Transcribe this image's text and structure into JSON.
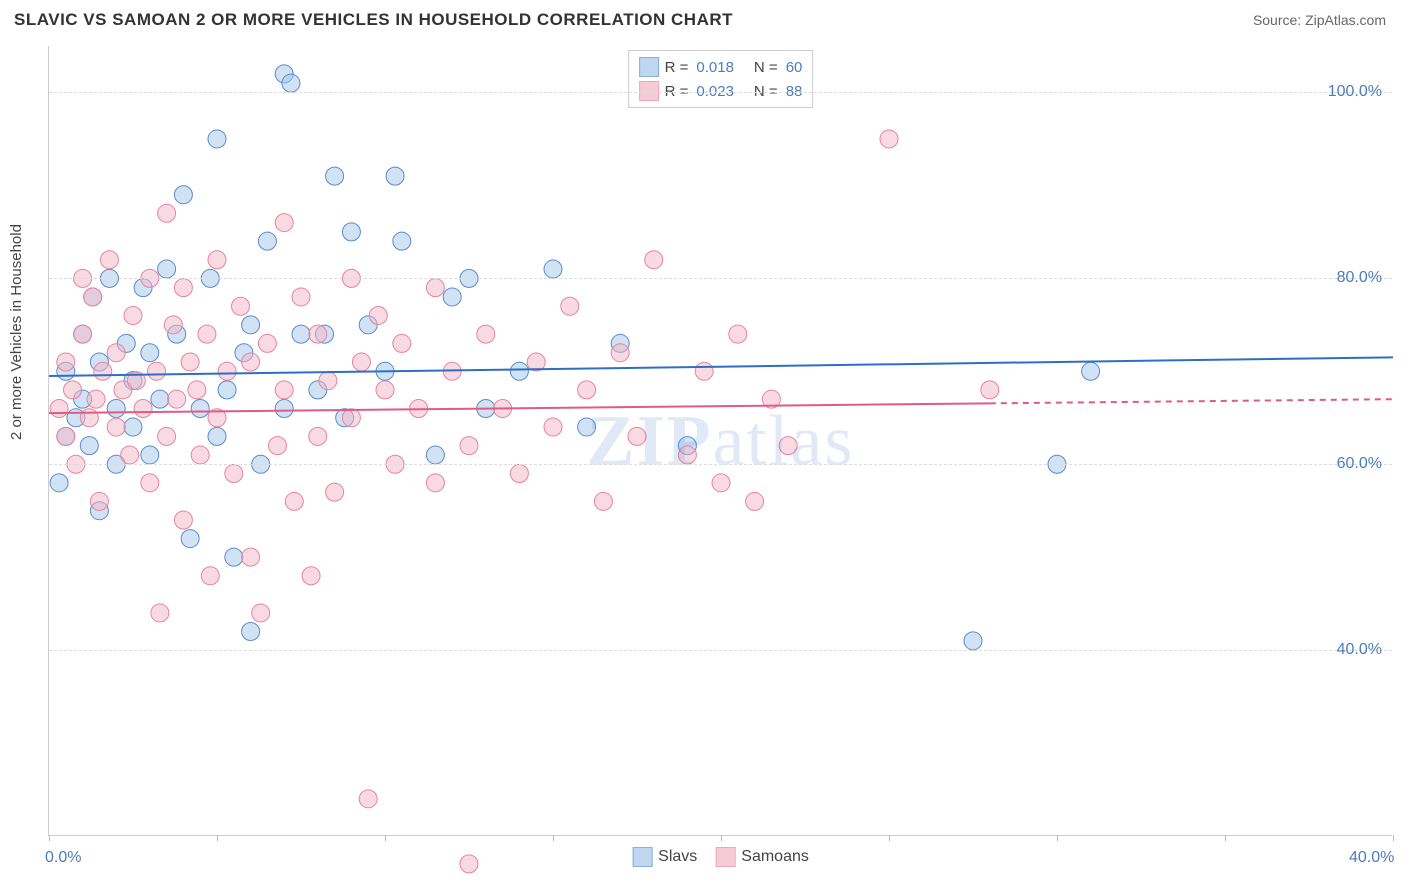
{
  "header": {
    "title": "SLAVIC VS SAMOAN 2 OR MORE VEHICLES IN HOUSEHOLD CORRELATION CHART",
    "source": "Source: ZipAtlas.com"
  },
  "chart": {
    "type": "scatter",
    "y_axis_label": "2 or more Vehicles in Household",
    "xlim": [
      0,
      40
    ],
    "ylim": [
      20,
      105
    ],
    "x_ticks": [
      0,
      5,
      10,
      15,
      20,
      25,
      30,
      35,
      40
    ],
    "x_tick_labels": {
      "0": "0.0%",
      "40": "40.0%"
    },
    "y_gridlines": [
      40,
      60,
      80,
      100
    ],
    "y_tick_labels": {
      "40": "40.0%",
      "60": "60.0%",
      "80": "80.0%",
      "100": "100.0%"
    },
    "background_color": "#ffffff",
    "grid_color": "#dddddd",
    "axis_color": "#cccccc",
    "tick_label_color": "#4a7ebb",
    "title_color": "#333333",
    "watermark": "ZIPatlas",
    "series": [
      {
        "name": "Slavs",
        "fill": "#a3c5eb",
        "stroke": "#5b8bc9",
        "fill_opacity": 0.5,
        "marker_radius": 9,
        "trend": {
          "y1": 69.5,
          "y2": 71.5,
          "color": "#2e6fc4",
          "width": 2
        },
        "R": "0.018",
        "N": "60",
        "points": [
          [
            0.3,
            58
          ],
          [
            0.5,
            63
          ],
          [
            0.5,
            70
          ],
          [
            0.8,
            65
          ],
          [
            1.0,
            67
          ],
          [
            1.0,
            74
          ],
          [
            1.2,
            62
          ],
          [
            1.3,
            78
          ],
          [
            1.5,
            55
          ],
          [
            1.5,
            71
          ],
          [
            1.8,
            80
          ],
          [
            2.0,
            66
          ],
          [
            2.0,
            60
          ],
          [
            2.3,
            73
          ],
          [
            2.5,
            64
          ],
          [
            2.5,
            69
          ],
          [
            2.8,
            79
          ],
          [
            3.0,
            72
          ],
          [
            3.0,
            61
          ],
          [
            3.3,
            67
          ],
          [
            3.5,
            81
          ],
          [
            3.8,
            74
          ],
          [
            4.0,
            89
          ],
          [
            4.2,
            52
          ],
          [
            4.5,
            66
          ],
          [
            4.8,
            80
          ],
          [
            5.0,
            63
          ],
          [
            5.0,
            95
          ],
          [
            5.3,
            68
          ],
          [
            5.5,
            50
          ],
          [
            5.8,
            72
          ],
          [
            6.0,
            42
          ],
          [
            6.0,
            75
          ],
          [
            6.3,
            60
          ],
          [
            6.5,
            84
          ],
          [
            7.0,
            66
          ],
          [
            7.0,
            102
          ],
          [
            7.2,
            101
          ],
          [
            7.5,
            74
          ],
          [
            8.0,
            68
          ],
          [
            8.2,
            74
          ],
          [
            8.5,
            91
          ],
          [
            8.8,
            65
          ],
          [
            9.0,
            85
          ],
          [
            9.5,
            75
          ],
          [
            10.0,
            70
          ],
          [
            10.3,
            91
          ],
          [
            10.5,
            84
          ],
          [
            11.5,
            61
          ],
          [
            12.0,
            78
          ],
          [
            12.5,
            80
          ],
          [
            13.0,
            66
          ],
          [
            14.0,
            70
          ],
          [
            15.0,
            81
          ],
          [
            16.0,
            64
          ],
          [
            17.0,
            73
          ],
          [
            19.0,
            62
          ],
          [
            27.5,
            41
          ],
          [
            30.0,
            60
          ],
          [
            31.0,
            70
          ]
        ]
      },
      {
        "name": "Samoans",
        "fill": "#f4b6c5",
        "stroke": "#e6849f",
        "fill_opacity": 0.5,
        "marker_radius": 9,
        "trend": {
          "y1": 65.5,
          "y2": 67.0,
          "x_solid_end": 28,
          "color": "#e05b84",
          "width": 2
        },
        "R": "0.023",
        "N": "88",
        "points": [
          [
            0.3,
            66
          ],
          [
            0.5,
            63
          ],
          [
            0.5,
            71
          ],
          [
            0.7,
            68
          ],
          [
            0.8,
            60
          ],
          [
            1.0,
            74
          ],
          [
            1.0,
            80
          ],
          [
            1.2,
            65
          ],
          [
            1.3,
            78
          ],
          [
            1.4,
            67
          ],
          [
            1.5,
            56
          ],
          [
            1.6,
            70
          ],
          [
            1.8,
            82
          ],
          [
            2.0,
            64
          ],
          [
            2.0,
            72
          ],
          [
            2.2,
            68
          ],
          [
            2.4,
            61
          ],
          [
            2.5,
            76
          ],
          [
            2.6,
            69
          ],
          [
            2.8,
            66
          ],
          [
            3.0,
            58
          ],
          [
            3.0,
            80
          ],
          [
            3.2,
            70
          ],
          [
            3.3,
            44
          ],
          [
            3.5,
            87
          ],
          [
            3.5,
            63
          ],
          [
            3.7,
            75
          ],
          [
            3.8,
            67
          ],
          [
            4.0,
            54
          ],
          [
            4.0,
            79
          ],
          [
            4.2,
            71
          ],
          [
            4.4,
            68
          ],
          [
            4.5,
            61
          ],
          [
            4.7,
            74
          ],
          [
            4.8,
            48
          ],
          [
            5.0,
            82
          ],
          [
            5.0,
            65
          ],
          [
            5.3,
            70
          ],
          [
            5.5,
            59
          ],
          [
            5.7,
            77
          ],
          [
            6.0,
            50
          ],
          [
            6.0,
            71
          ],
          [
            6.3,
            44
          ],
          [
            6.5,
            73
          ],
          [
            6.8,
            62
          ],
          [
            7.0,
            86
          ],
          [
            7.0,
            68
          ],
          [
            7.3,
            56
          ],
          [
            7.5,
            78
          ],
          [
            7.8,
            48
          ],
          [
            8.0,
            74
          ],
          [
            8.0,
            63
          ],
          [
            8.3,
            69
          ],
          [
            8.5,
            57
          ],
          [
            9.0,
            80
          ],
          [
            9.0,
            65
          ],
          [
            9.3,
            71
          ],
          [
            9.5,
            24
          ],
          [
            9.8,
            76
          ],
          [
            10.0,
            68
          ],
          [
            10.3,
            60
          ],
          [
            10.5,
            73
          ],
          [
            11.0,
            66
          ],
          [
            11.5,
            79
          ],
          [
            11.5,
            58
          ],
          [
            12.0,
            70
          ],
          [
            12.5,
            62
          ],
          [
            12.5,
            17
          ],
          [
            13.0,
            74
          ],
          [
            13.5,
            66
          ],
          [
            14.0,
            59
          ],
          [
            14.5,
            71
          ],
          [
            15.0,
            64
          ],
          [
            15.5,
            77
          ],
          [
            16.0,
            68
          ],
          [
            16.5,
            56
          ],
          [
            17.0,
            72
          ],
          [
            17.5,
            63
          ],
          [
            18.0,
            82
          ],
          [
            19.0,
            61
          ],
          [
            19.5,
            70
          ],
          [
            20.0,
            58
          ],
          [
            20.5,
            74
          ],
          [
            21.0,
            56
          ],
          [
            21.5,
            67
          ],
          [
            22.0,
            62
          ],
          [
            25.0,
            95
          ],
          [
            28.0,
            68
          ]
        ]
      }
    ],
    "legend_bottom": [
      {
        "label": "Slavs",
        "fill": "#a3c5eb",
        "stroke": "#5b8bc9"
      },
      {
        "label": "Samoans",
        "fill": "#f4b6c5",
        "stroke": "#e6849f"
      }
    ]
  }
}
